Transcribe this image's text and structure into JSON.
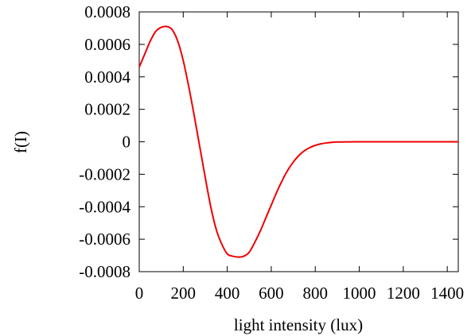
{
  "chart_data": {
    "type": "line",
    "title": "",
    "xlabel": "light intensity (lux)",
    "ylabel": "f(I)",
    "xlim": [
      0,
      1450
    ],
    "ylim": [
      -0.0008,
      0.0008
    ],
    "x_ticks": [
      0,
      200,
      400,
      600,
      800,
      1000,
      1200,
      1400
    ],
    "y_ticks": [
      -0.0008,
      -0.0006,
      -0.0004,
      -0.0002,
      0,
      0.0002,
      0.0004,
      0.0006,
      0.0008
    ],
    "x_tick_labels": [
      "0",
      "200",
      "400",
      "600",
      "800",
      "1000",
      "1200",
      "1400"
    ],
    "y_tick_labels": [
      "-0.0008",
      "-0.0006",
      "-0.0004",
      "-0.0002",
      "0",
      "0.0002",
      "0.0004",
      "0.0006",
      "0.0008"
    ],
    "grid": false,
    "legend": "none",
    "series": [
      {
        "color": "#ee0000",
        "x": [
          0,
          25,
          50,
          75,
          100,
          125,
          150,
          175,
          200,
          225,
          250,
          275,
          300,
          325,
          350,
          375,
          400,
          425,
          450,
          475,
          500,
          525,
          550,
          575,
          600,
          625,
          650,
          675,
          700,
          725,
          750,
          775,
          800,
          825,
          850,
          875,
          900,
          950,
          1000,
          1050,
          1100,
          1150,
          1200,
          1300,
          1400,
          1450
        ],
        "y": [
          0.00046,
          0.00054,
          0.00062,
          0.00068,
          0.000705,
          0.00071,
          0.00069,
          0.00062,
          0.0005,
          0.00034,
          0.00016,
          -3e-05,
          -0.00022,
          -0.0004,
          -0.00054,
          -0.00063,
          -0.00069,
          -0.000705,
          -0.00071,
          -0.000705,
          -0.00068,
          -0.00062,
          -0.00055,
          -0.00047,
          -0.00039,
          -0.00031,
          -0.000238,
          -0.000175,
          -0.000125,
          -8.5e-05,
          -5.6e-05,
          -3.6e-05,
          -2.2e-05,
          -1.3e-05,
          -7e-06,
          -3.5e-06,
          -1.5e-06,
          -5e-07,
          -1.5e-07,
          0,
          0,
          0,
          0,
          0,
          0,
          0
        ]
      }
    ]
  }
}
